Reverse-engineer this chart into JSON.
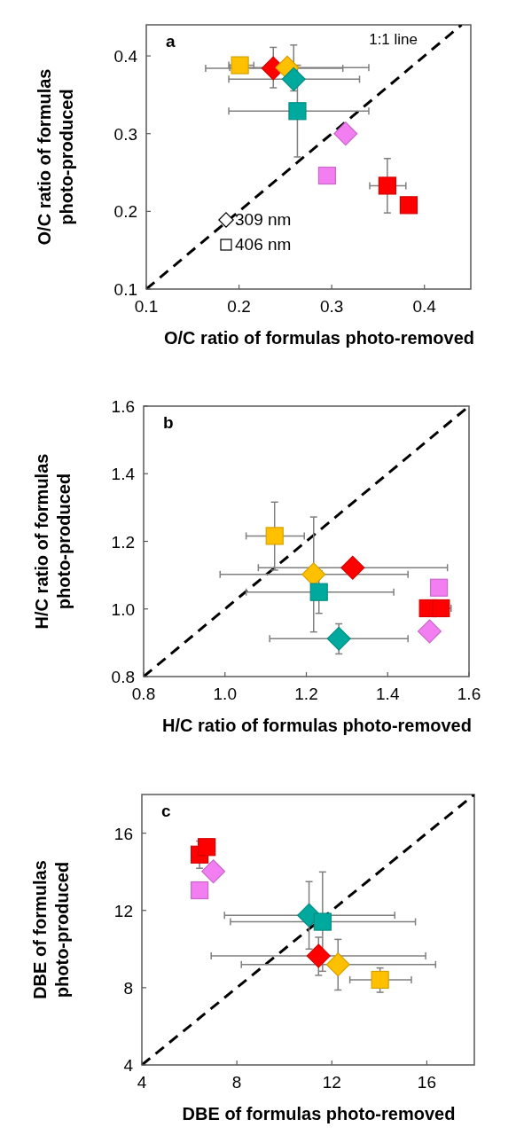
{
  "chart_data": [
    {
      "type": "scatter",
      "title": "a",
      "xlabel": "O/C ratio of formulas photo-removed",
      "ylabel": "O/C ratio of formulas\nphoto-produced",
      "xlim": [
        0.1,
        0.45
      ],
      "ylim": [
        0.1,
        0.44
      ],
      "xticks": [
        0.1,
        0.2,
        0.3,
        0.4
      ],
      "yticks": [
        0.1,
        0.2,
        0.3,
        0.4
      ],
      "annotations": [
        "1:1 line",
        "309 nm",
        "406 nm"
      ],
      "series": [
        {
          "type": "line",
          "color": "#000000",
          "line_style": "dashed",
          "marker": "none",
          "x": [
            0.1,
            0.44
          ],
          "values": [
            0.1,
            0.44
          ]
        },
        {
          "type": "scatter",
          "marker": "diamond",
          "colors": [
            "#ff0000",
            "#ffc000",
            "#00a99d",
            "#f27ef2"
          ],
          "x": [
            0.237,
            0.252,
            0.259,
            0.315
          ],
          "values": [
            0.384,
            0.385,
            0.37,
            0.3
          ],
          "errors": [
            [
              0.359,
              0.411
            ],
            null,
            [
              0.355,
              0.414
            ],
            null
          ],
          "xerrors": [
            [
              0.164,
              0.312
            ],
            [
              0.19,
              0.34
            ],
            [
              0.189,
              0.33
            ],
            null
          ]
        },
        {
          "type": "scatter",
          "marker": "square",
          "colors": [
            "#ffc000",
            "#00a99d",
            "#f27ef2",
            "#ff0000",
            "#ff0000"
          ],
          "x": [
            0.201,
            0.263,
            0.295,
            0.36,
            0.383
          ],
          "values": [
            0.388,
            0.329,
            0.246,
            0.233,
            0.208
          ],
          "errors": [
            null,
            [
              0.27,
              0.388
            ],
            null,
            [
              0.198,
              0.268
            ],
            null
          ],
          "xerrors": [
            [
              0.189,
              0.216
            ],
            [
              0.189,
              0.34
            ],
            null,
            [
              0.341,
              0.38
            ],
            null
          ]
        }
      ]
    },
    {
      "type": "scatter",
      "title": "b",
      "xlabel": "H/C ratio of formulas photo-removed",
      "ylabel": "H/C ratio of formulas\nphoto-produced",
      "xlim": [
        0.8,
        1.6
      ],
      "ylim": [
        0.8,
        1.6
      ],
      "xticks": [
        {
          "value": 0.8,
          "label": "0.8"
        },
        {
          "value": 1,
          "label": "1.0"
        },
        {
          "value": 1.2,
          "label": "1.2"
        },
        {
          "value": 1.4,
          "label": "1.4"
        },
        {
          "value": 1.6,
          "label": "1.6"
        }
      ],
      "yticks": [
        {
          "value": 0.8,
          "label": "0.8"
        },
        {
          "value": 1,
          "label": "1.0"
        },
        {
          "value": 1.2,
          "label": "1.2"
        },
        {
          "value": 1.4,
          "label": "1.4"
        },
        {
          "value": 1.6,
          "label": "1.6"
        }
      ],
      "series": [
        {
          "type": "line",
          "color": "#000000",
          "line_style": "dashed",
          "marker": "none",
          "x": [
            0.8,
            1.6
          ],
          "values": [
            0.8,
            1.6
          ]
        },
        {
          "type": "scatter",
          "marker": "diamond",
          "colors": [
            "#ffc000",
            "#ff0000",
            "#00a99d",
            "#f27ef2"
          ],
          "x": [
            1.218,
            1.314,
            1.28,
            1.503
          ],
          "values": [
            1.102,
            1.122,
            0.912,
            0.934
          ],
          "errors": [
            [
              0.932,
              1.272
            ],
            null,
            [
              0.867,
              0.956
            ],
            null
          ],
          "xerrors": [
            [
              0.988,
              1.45
            ],
            [
              1.082,
              1.547
            ],
            [
              1.11,
              1.45
            ],
            null
          ]
        },
        {
          "type": "scatter",
          "marker": "square",
          "colors": [
            "#ffc000",
            "#00a99d",
            "#f27ef2",
            "#ff0000",
            "#ff0000"
          ],
          "x": [
            1.122,
            1.231,
            1.526,
            1.499,
            1.531
          ],
          "values": [
            1.216,
            1.05,
            1.063,
            1.002,
            1.002
          ],
          "errors": [
            [
              1.115,
              1.316
            ],
            [
              0.987,
              1.113
            ],
            null,
            null,
            null
          ],
          "xerrors": [
            [
              1.052,
              1.195
            ],
            [
              1.052,
              1.415
            ],
            null,
            null,
            [
              1.506,
              1.556
            ]
          ]
        }
      ]
    },
    {
      "type": "scatter",
      "title": "c",
      "xlabel": "DBE of formulas photo-removed",
      "ylabel": "DBE of formulas\nphoto-produced",
      "xlim": [
        4,
        18
      ],
      "ylim": [
        4,
        18
      ],
      "xticks": [
        4,
        8,
        12,
        16
      ],
      "yticks": [
        4,
        8,
        12,
        16
      ],
      "series": [
        {
          "type": "line",
          "color": "#000000",
          "line_style": "dashed",
          "marker": "none",
          "x": [
            4,
            18
          ],
          "values": [
            4,
            18
          ]
        },
        {
          "type": "scatter",
          "marker": "diamond",
          "colors": [
            "#f27ef2",
            "#00a99d",
            "#ff0000",
            "#ffc000"
          ],
          "x": [
            7.01,
            11.04,
            11.44,
            12.26
          ],
          "values": [
            14.02,
            11.75,
            9.65,
            9.2
          ],
          "errors": [
            null,
            [
              10,
              13.49
            ],
            [
              8.64,
              10.61
            ],
            [
              7.88,
              10.5
            ]
          ],
          "xerrors": [
            null,
            [
              7.48,
              14.65
            ],
            [
              6.92,
              15.95
            ],
            [
              8.19,
              16.37
            ]
          ]
        },
        {
          "type": "scatter",
          "marker": "square",
          "colors": [
            "#ff0000",
            "#ff0000",
            "#f27ef2",
            "#00a99d",
            "#ffc000"
          ],
          "x": [
            6.43,
            6.73,
            6.43,
            11.61,
            14.03
          ],
          "values": [
            14.89,
            15.28,
            13.04,
            11.41,
            8.41
          ],
          "errors": [
            [
              14.18,
              15.59
            ],
            null,
            null,
            [
              8.85,
              13.99
            ],
            [
              7.76,
              9.02
            ]
          ],
          "xerrors": [
            null,
            null,
            null,
            [
              7.73,
              15.52
            ],
            [
              12.76,
              15.35
            ]
          ]
        }
      ]
    }
  ]
}
